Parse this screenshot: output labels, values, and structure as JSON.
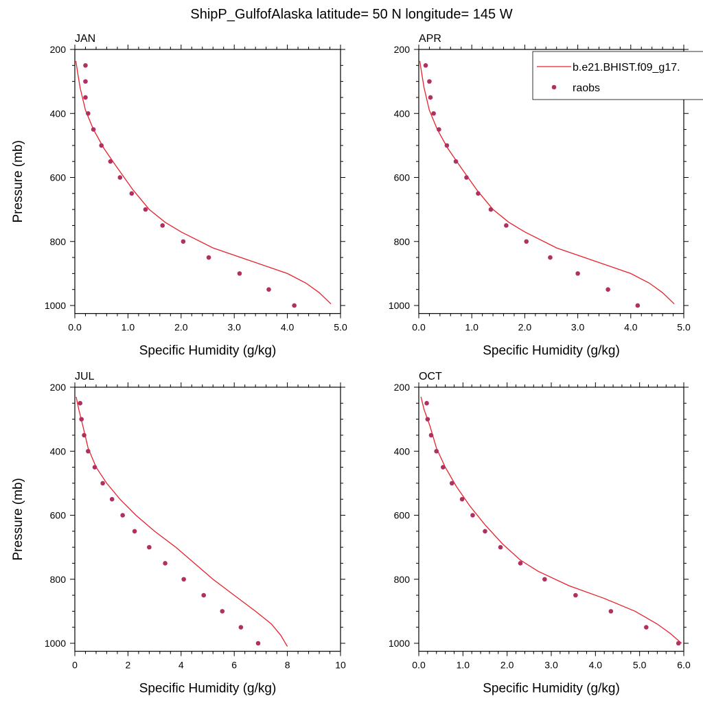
{
  "title": "ShipP_GulfofAlaska  latitude= 50 N longitude= 145 W",
  "colors": {
    "model": "#e8202a",
    "obs": "#b03060"
  },
  "legend": {
    "model_label": "b.e21.BHIST.f09_g17.",
    "obs_label": "raobs",
    "placement": "top-right of APR panel"
  },
  "chart_data": [
    {
      "type": "line",
      "panel": "JAN",
      "title": "JAN",
      "xlabel": "Specific Humidity (g/kg)",
      "ylabel": "Pressure (mb)",
      "xlim": [
        0,
        5
      ],
      "ylim": [
        200,
        1000
      ],
      "y_inverted": true,
      "xticks": [
        "0.0",
        "1.0",
        "2.0",
        "3.0",
        "4.0",
        "5.0"
      ],
      "yticks": [
        "200",
        "400",
        "600",
        "800",
        "1000"
      ],
      "series": [
        {
          "name": "b.e21.BHIST.f09_g17.",
          "kind": "line",
          "x": [
            0.02,
            0.05,
            0.1,
            0.2,
            0.35,
            0.55,
            0.8,
            1.1,
            1.4,
            1.7,
            2.0,
            2.6,
            3.3,
            4.0,
            4.35,
            4.6,
            4.82
          ],
          "y": [
            236,
            270,
            320,
            390,
            450,
            510,
            570,
            640,
            700,
            740,
            770,
            820,
            860,
            900,
            930,
            960,
            995
          ]
        },
        {
          "name": "raobs",
          "kind": "scatter",
          "x": [
            0.2,
            0.2,
            0.2,
            0.25,
            0.35,
            0.5,
            0.67,
            0.85,
            1.07,
            1.33,
            1.65,
            2.04,
            2.52,
            3.1,
            3.65,
            4.13
          ],
          "y": [
            250,
            300,
            350,
            400,
            450,
            500,
            550,
            600,
            650,
            700,
            750,
            800,
            850,
            900,
            950,
            1000
          ]
        }
      ]
    },
    {
      "type": "line",
      "panel": "APR",
      "title": "APR",
      "xlabel": "Specific Humidity (g/kg)",
      "ylabel": "",
      "xlim": [
        0,
        5
      ],
      "ylim": [
        200,
        1000
      ],
      "y_inverted": true,
      "xticks": [
        "0.0",
        "1.0",
        "2.0",
        "3.0",
        "4.0",
        "5.0"
      ],
      "yticks": [
        "200",
        "400",
        "600",
        "800",
        "1000"
      ],
      "series": [
        {
          "name": "b.e21.BHIST.f09_g17.",
          "kind": "line",
          "x": [
            0.02,
            0.05,
            0.1,
            0.2,
            0.35,
            0.55,
            0.8,
            1.1,
            1.4,
            1.7,
            2.0,
            2.6,
            3.3,
            4.0,
            4.35,
            4.6,
            4.82
          ],
          "y": [
            236,
            270,
            320,
            390,
            450,
            510,
            570,
            640,
            700,
            740,
            770,
            820,
            860,
            900,
            930,
            960,
            995
          ]
        },
        {
          "name": "raobs",
          "kind": "scatter",
          "x": [
            0.13,
            0.2,
            0.22,
            0.28,
            0.38,
            0.53,
            0.7,
            0.9,
            1.12,
            1.36,
            1.65,
            2.03,
            2.48,
            3.0,
            3.57,
            4.13
          ],
          "y": [
            250,
            300,
            350,
            400,
            450,
            500,
            550,
            600,
            650,
            700,
            750,
            800,
            850,
            900,
            950,
            1000
          ]
        }
      ]
    },
    {
      "type": "line",
      "panel": "JUL",
      "title": "JUL",
      "xlabel": "Specific Humidity (g/kg)",
      "ylabel": "Pressure (mb)",
      "xlim": [
        0,
        10
      ],
      "ylim": [
        200,
        1000
      ],
      "y_inverted": true,
      "xticks": [
        "0",
        "2",
        "4",
        "6",
        "8",
        "10"
      ],
      "yticks": [
        "200",
        "400",
        "600",
        "800",
        "1000"
      ],
      "series": [
        {
          "name": "b.e21.BHIST.f09_g17.",
          "kind": "line",
          "x": [
            0.05,
            0.15,
            0.3,
            0.5,
            0.8,
            1.2,
            1.7,
            2.3,
            3.0,
            3.8,
            4.5,
            5.2,
            6.0,
            6.8,
            7.4,
            7.75,
            8.0
          ],
          "y": [
            230,
            270,
            320,
            390,
            450,
            500,
            550,
            600,
            650,
            700,
            750,
            800,
            850,
            900,
            940,
            975,
            1010
          ]
        },
        {
          "name": "raobs",
          "kind": "scatter",
          "x": [
            0.2,
            0.25,
            0.35,
            0.5,
            0.75,
            1.05,
            1.4,
            1.8,
            2.25,
            2.8,
            3.4,
            4.1,
            4.85,
            5.55,
            6.25,
            6.9
          ],
          "y": [
            250,
            300,
            350,
            400,
            450,
            500,
            550,
            600,
            650,
            700,
            750,
            800,
            850,
            900,
            950,
            1000
          ]
        }
      ]
    },
    {
      "type": "line",
      "panel": "OCT",
      "title": "OCT",
      "xlabel": "Specific Humidity (g/kg)",
      "ylabel": "",
      "xlim": [
        0,
        6
      ],
      "ylim": [
        200,
        1000
      ],
      "y_inverted": true,
      "xticks": [
        "0.0",
        "1.0",
        "2.0",
        "3.0",
        "4.0",
        "5.0",
        "6.0"
      ],
      "yticks": [
        "200",
        "400",
        "600",
        "800",
        "1000"
      ],
      "series": [
        {
          "name": "b.e21.BHIST.f09_g17.",
          "kind": "line",
          "x": [
            0.05,
            0.12,
            0.25,
            0.4,
            0.6,
            0.85,
            1.15,
            1.5,
            1.9,
            2.3,
            2.7,
            3.4,
            4.2,
            4.9,
            5.4,
            5.7,
            5.95
          ],
          "y": [
            230,
            270,
            320,
            390,
            450,
            510,
            570,
            630,
            690,
            740,
            775,
            820,
            860,
            900,
            940,
            970,
            1000
          ]
        },
        {
          "name": "raobs",
          "kind": "scatter",
          "x": [
            0.18,
            0.2,
            0.28,
            0.4,
            0.55,
            0.75,
            0.98,
            1.22,
            1.5,
            1.85,
            2.3,
            2.85,
            3.55,
            4.35,
            5.15,
            5.88
          ],
          "y": [
            250,
            300,
            350,
            400,
            450,
            500,
            550,
            600,
            650,
            700,
            750,
            800,
            850,
            900,
            950,
            1000
          ]
        }
      ]
    }
  ]
}
